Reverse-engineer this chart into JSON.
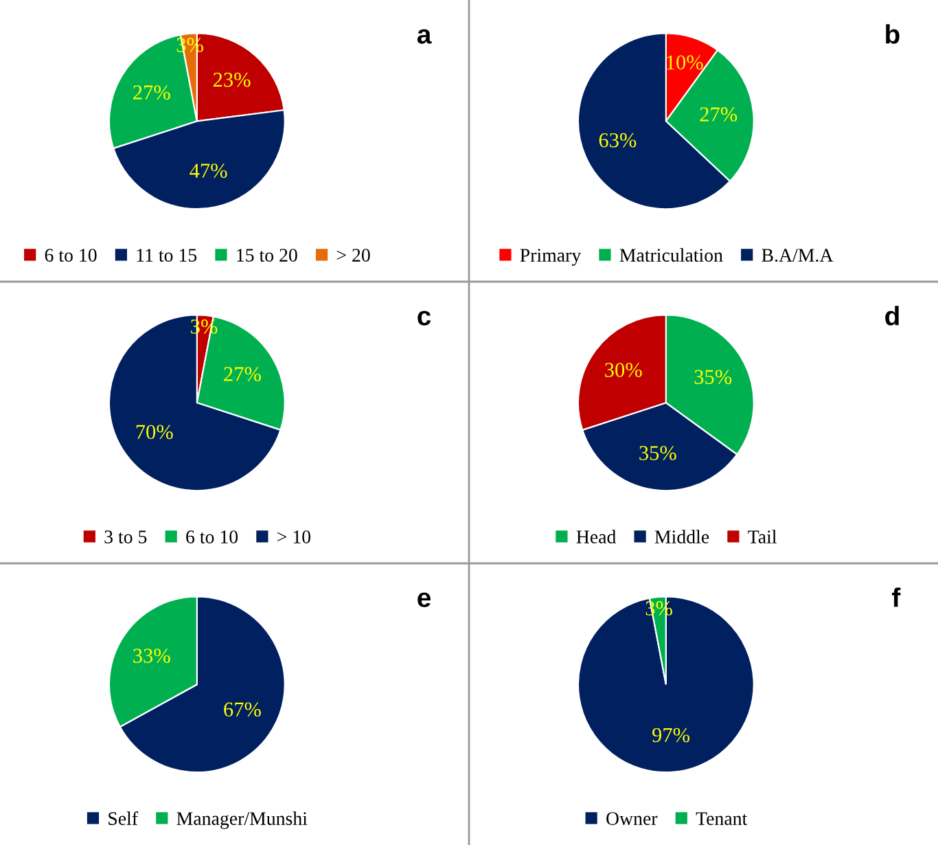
{
  "chart_data": [
    {
      "type": "pie",
      "categories": [
        "6 to 10",
        "11 to 15",
        "15 to 20",
        "> 20"
      ],
      "values": [
        23,
        47,
        27,
        3
      ],
      "value_labels": [
        "23%",
        "47%",
        "27%",
        "3%"
      ],
      "colors": [
        "#c00000",
        "#002060",
        "#00b050",
        "#e46c0a"
      ],
      "annotations": [
        "a"
      ],
      "legend": "bottom"
    },
    {
      "type": "pie",
      "categories": [
        "Primary",
        "Matriculation",
        "B.A/M.A"
      ],
      "values": [
        10,
        27,
        63
      ],
      "value_labels": [
        "10%",
        "27%",
        "63%"
      ],
      "colors": [
        "#ff0000",
        "#00b050",
        "#002060"
      ],
      "annotations": [
        "b"
      ],
      "legend": "bottom"
    },
    {
      "type": "pie",
      "categories": [
        "3 to 5",
        "6 to 10",
        "> 10"
      ],
      "values": [
        3,
        27,
        70
      ],
      "value_labels": [
        "3%",
        "27%",
        "70%"
      ],
      "colors": [
        "#c00000",
        "#00b050",
        "#002060"
      ],
      "annotations": [
        "c"
      ],
      "legend": "bottom"
    },
    {
      "type": "pie",
      "categories": [
        "Head",
        "Middle",
        "Tail"
      ],
      "values": [
        35,
        35,
        30
      ],
      "value_labels": [
        "35%",
        "35%",
        "30%"
      ],
      "colors": [
        "#00b050",
        "#002060",
        "#c00000"
      ],
      "annotations": [
        "d"
      ],
      "legend": "bottom"
    },
    {
      "type": "pie",
      "categories": [
        "Self",
        "Manager/Munshi"
      ],
      "values": [
        67,
        33
      ],
      "value_labels": [
        "67%",
        "33%"
      ],
      "colors": [
        "#002060",
        "#00b050"
      ],
      "annotations": [
        "e"
      ],
      "legend": "bottom"
    },
    {
      "type": "pie",
      "categories": [
        "Owner",
        "Tenant"
      ],
      "values": [
        97,
        3
      ],
      "value_labels": [
        "97%",
        "3%"
      ],
      "colors": [
        "#002060",
        "#00b050"
      ],
      "annotations": [
        "f"
      ],
      "legend": "bottom"
    }
  ]
}
